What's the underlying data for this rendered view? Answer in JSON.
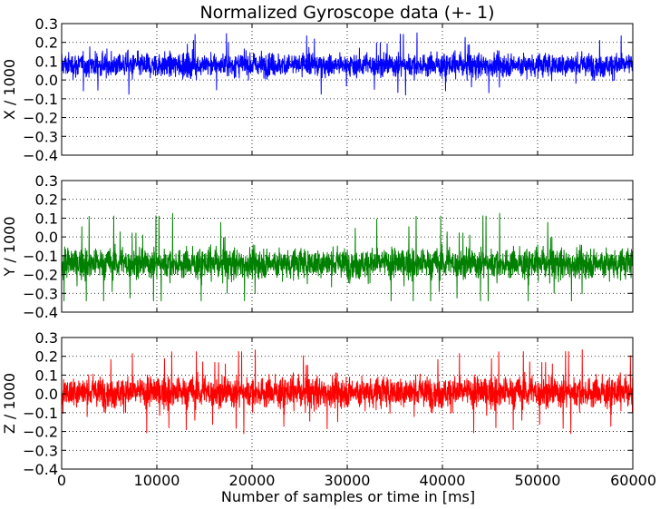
{
  "title": "Normalized Gyroscope data (+- 1)",
  "chart_data": [
    {
      "type": "line",
      "id": "x",
      "ylabel": "X / 1000",
      "color": "#0000ff",
      "xlim": [
        0,
        60000
      ],
      "ylim": [
        -0.4,
        0.3
      ],
      "yticks": [
        "0.3",
        "0.2",
        "0.1",
        "0.0",
        "−0.1",
        "−0.2",
        "−0.3",
        "−0.4"
      ],
      "grid": true,
      "series": [
        {
          "mean": 0.08,
          "envelope": [
            -0.02,
            0.19
          ],
          "peaks": [
            -0.08,
            0.26
          ]
        }
      ]
    },
    {
      "type": "line",
      "id": "y",
      "ylabel": "Y / 1000",
      "color": "#008000",
      "xlim": [
        0,
        60000
      ],
      "ylim": [
        -0.4,
        0.3
      ],
      "yticks": [
        "0.3",
        "0.2",
        "0.1",
        "0.0",
        "−0.1",
        "−0.2",
        "−0.3",
        "−0.4"
      ],
      "grid": true,
      "series": [
        {
          "mean": -0.14,
          "envelope": [
            -0.27,
            0.0
          ],
          "peaks": [
            -0.34,
            0.14
          ]
        }
      ]
    },
    {
      "type": "line",
      "id": "z",
      "ylabel": "Z / 1000",
      "xlabel": "Number of samples or time in [ms]",
      "color": "#ff0000",
      "xlim": [
        0,
        60000
      ],
      "ylim": [
        -0.4,
        0.3
      ],
      "yticks": [
        "0.3",
        "0.2",
        "0.1",
        "0.0",
        "−0.1",
        "−0.2",
        "−0.3",
        "−0.4"
      ],
      "xticks": [
        "0",
        "10000",
        "20000",
        "30000",
        "40000",
        "50000",
        "60000"
      ],
      "grid": true,
      "series": [
        {
          "mean": 0.01,
          "envelope": [
            -0.13,
            0.15
          ],
          "peaks": [
            -0.24,
            0.24
          ]
        }
      ]
    }
  ]
}
